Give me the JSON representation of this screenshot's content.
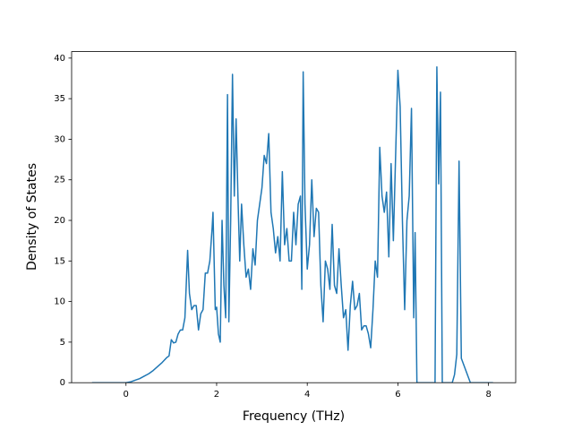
{
  "chart_data": {
    "type": "line",
    "x_label": "Frequency (THz)",
    "y_label": "Density of States",
    "xlim": [
      -1.2,
      8.6
    ],
    "ylim": [
      0,
      40.8
    ],
    "xticks": [
      0,
      2,
      4,
      6,
      8
    ],
    "yticks": [
      0,
      5,
      10,
      15,
      20,
      25,
      30,
      35,
      40
    ],
    "grid": false,
    "series": [
      {
        "color": "#1f77b4",
        "x": [
          -0.75,
          -0.5,
          -0.25,
          0,
          0.1,
          0.2,
          0.3,
          0.4,
          0.5,
          0.6,
          0.7,
          0.8,
          0.9,
          0.95,
          1.0,
          1.05,
          1.1,
          1.15,
          1.2,
          1.25,
          1.3,
          1.36,
          1.4,
          1.45,
          1.5,
          1.55,
          1.6,
          1.65,
          1.7,
          1.75,
          1.8,
          1.85,
          1.9,
          1.92,
          1.97,
          2.0,
          2.04,
          2.08,
          2.12,
          2.16,
          2.2,
          2.24,
          2.27,
          2.31,
          2.35,
          2.39,
          2.43,
          2.47,
          2.51,
          2.55,
          2.6,
          2.65,
          2.7,
          2.75,
          2.8,
          2.85,
          2.9,
          2.95,
          3.0,
          3.05,
          3.1,
          3.15,
          3.2,
          3.25,
          3.3,
          3.35,
          3.4,
          3.45,
          3.5,
          3.55,
          3.6,
          3.65,
          3.7,
          3.75,
          3.8,
          3.85,
          3.88,
          3.91,
          3.95,
          4.0,
          4.05,
          4.1,
          4.15,
          4.2,
          4.25,
          4.3,
          4.35,
          4.4,
          4.45,
          4.5,
          4.55,
          4.6,
          4.65,
          4.7,
          4.75,
          4.8,
          4.85,
          4.9,
          4.95,
          5.0,
          5.05,
          5.1,
          5.15,
          5.2,
          5.25,
          5.3,
          5.35,
          5.4,
          5.45,
          5.5,
          5.55,
          5.6,
          5.65,
          5.7,
          5.75,
          5.8,
          5.85,
          5.9,
          5.95,
          6.0,
          6.05,
          6.1,
          6.15,
          6.2,
          6.25,
          6.3,
          6.35,
          6.38,
          6.42,
          6.6,
          6.82,
          6.86,
          6.9,
          6.94,
          6.98,
          7.1,
          7.2,
          7.25,
          7.3,
          7.35,
          7.4,
          7.6,
          7.8,
          8.1
        ],
        "values": [
          0,
          0,
          0,
          0,
          0.1,
          0.3,
          0.5,
          0.8,
          1.1,
          1.5,
          2.0,
          2.5,
          3.1,
          3.3,
          5.3,
          4.9,
          5.0,
          6.0,
          6.5,
          6.5,
          8.0,
          16.3,
          11.0,
          9.0,
          9.5,
          9.5,
          6.5,
          8.5,
          9.0,
          13.5,
          13.5,
          15.0,
          19.0,
          21.0,
          9.0,
          9.3,
          6.0,
          5.0,
          20.0,
          12.0,
          8.0,
          35.5,
          7.5,
          20.0,
          38.0,
          23.0,
          32.5,
          23.0,
          15.0,
          22.0,
          17.0,
          13.0,
          14.0,
          11.5,
          16.5,
          14.5,
          20.0,
          22.0,
          24.0,
          28.0,
          27.0,
          30.7,
          21.0,
          19.0,
          16.0,
          18.0,
          15.0,
          26.0,
          17.0,
          19.0,
          15.0,
          15.0,
          21.0,
          17.0,
          22.0,
          23.0,
          11.5,
          38.3,
          22.0,
          14.0,
          17.0,
          25.0,
          18.0,
          21.5,
          21.0,
          12.0,
          7.5,
          15.0,
          14.0,
          11.5,
          19.5,
          12.0,
          11.0,
          16.5,
          12.0,
          8.0,
          9.0,
          4.0,
          9.5,
          12.5,
          9.0,
          9.5,
          11.0,
          6.5,
          7.0,
          7.0,
          6.0,
          4.3,
          9.0,
          15.0,
          13.0,
          29.0,
          23.0,
          21.0,
          23.5,
          15.5,
          27.0,
          17.5,
          28.0,
          38.5,
          34.0,
          20.0,
          9.0,
          20.0,
          23.0,
          33.8,
          8.0,
          18.5,
          0,
          0,
          0,
          38.9,
          24.5,
          35.8,
          0,
          0,
          0,
          1.0,
          3.5,
          27.3,
          3.0,
          0,
          0,
          0
        ]
      }
    ]
  }
}
